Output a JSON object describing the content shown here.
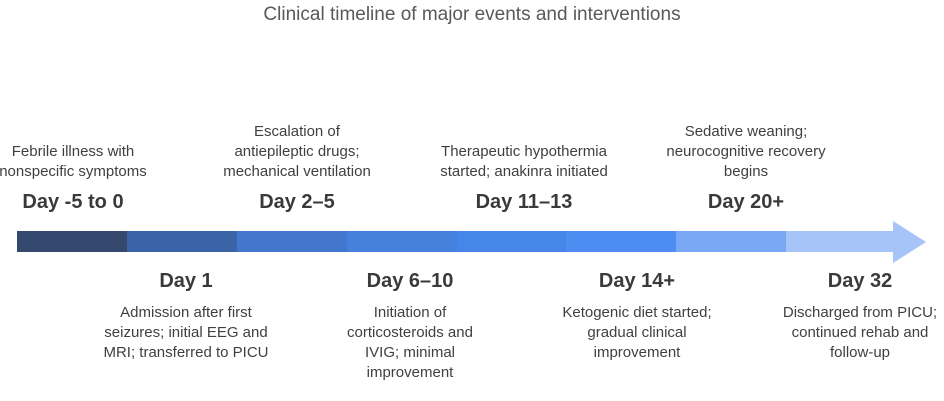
{
  "title": "Clinical timeline of major events and interventions",
  "top_events": [
    {
      "day": "Day -5 to 0",
      "description": "Febrile illness with nonspecific symptoms"
    },
    {
      "day": "Day 2–5",
      "description": "Escalation of antiepileptic drugs; mechanical ventilation"
    },
    {
      "day": "Day 11–13",
      "description": "Therapeutic hypothermia started; anakinra initiated"
    },
    {
      "day": "Day 20+",
      "description": "Sedative weaning; neurocognitive recovery begins"
    }
  ],
  "bottom_events": [
    {
      "day": "Day 1",
      "description": "Admission after first seizures; initial EEG and MRI; transferred to PICU"
    },
    {
      "day": "Day 6–10",
      "description": "Initiation of corticosteroids and IVIG; minimal improvement"
    },
    {
      "day": "Day 14+",
      "description": "Ketogenic diet started; gradual clinical improvement"
    },
    {
      "day": "Day 32",
      "description": "Discharged from PICU; continued rehab and follow-up"
    }
  ],
  "arrow": {
    "direction": "right",
    "segment_colors": [
      "#34496d",
      "#3a63a8",
      "#4277cd",
      "#4581dd",
      "#4586e8",
      "#4d8cf0",
      "#78a7f4",
      "#a6c4f8"
    ],
    "arrowhead_color": "#a6c4f8"
  },
  "colors": {
    "title_text": "#595959",
    "body_text": "#404040",
    "day_text": "#3a3a3a"
  }
}
